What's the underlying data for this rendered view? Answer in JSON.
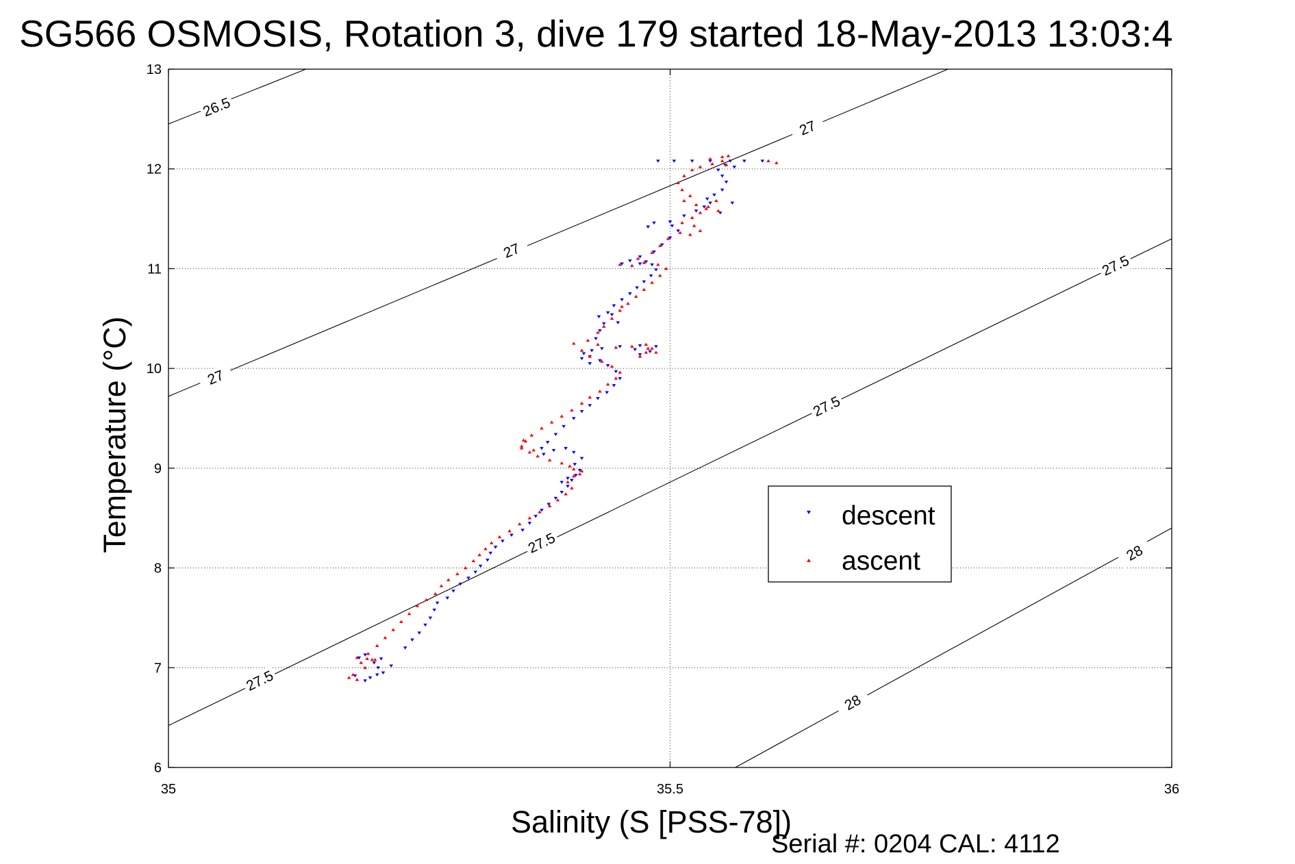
{
  "chart_data": {
    "type": "scatter",
    "title": "SG566 OSMOSIS, Rotation 3, dive 179 started 18-May-2013 13:03:4",
    "xlabel": "Salinity (S [PSS-78])",
    "ylabel": "Temperature (°C)",
    "xlim": [
      35,
      36
    ],
    "ylim": [
      6,
      13
    ],
    "x_ticks": [
      "35",
      "35.5",
      "36"
    ],
    "y_ticks": [
      "6",
      "7",
      "8",
      "9",
      "10",
      "11",
      "12",
      "13"
    ],
    "grid": "dotted",
    "legend_position": "center-right",
    "footer": "Serial #: 0204  CAL: 4112",
    "density_contours": [
      {
        "level": "26.5",
        "points": [
          [
            35.0,
            12.45
          ],
          [
            35.137,
            13.0
          ]
        ],
        "labels": [
          {
            "text": "26.5",
            "x": 35.048,
            "y": 12.62
          }
        ]
      },
      {
        "level": "27",
        "points": [
          [
            35.0,
            9.72
          ],
          [
            35.777,
            13.0
          ]
        ],
        "labels": [
          {
            "text": "27",
            "x": 35.047,
            "y": 9.91
          },
          {
            "text": "27",
            "x": 35.342,
            "y": 11.18
          },
          {
            "text": "27",
            "x": 35.637,
            "y": 12.41
          }
        ]
      },
      {
        "level": "27.5",
        "points": [
          [
            35.0,
            6.42
          ],
          [
            36.0,
            11.3
          ]
        ],
        "labels": [
          {
            "text": "27.5",
            "x": 35.091,
            "y": 6.87
          },
          {
            "text": "27.5",
            "x": 35.372,
            "y": 8.25
          },
          {
            "text": "27.5",
            "x": 35.656,
            "y": 9.62
          },
          {
            "text": "27.5",
            "x": 35.944,
            "y": 11.03
          }
        ]
      },
      {
        "level": "28",
        "points": [
          [
            35.565,
            6.0
          ],
          [
            36.0,
            8.4
          ]
        ],
        "labels": [
          {
            "text": "28",
            "x": 35.682,
            "y": 6.65
          },
          {
            "text": "28",
            "x": 35.963,
            "y": 8.15
          }
        ]
      }
    ],
    "series": [
      {
        "name": "descent",
        "color": "#0000ff",
        "marker": "triangle-down",
        "points": [
          [
            35.201,
            6.9
          ],
          [
            35.208,
            6.93
          ],
          [
            35.214,
            6.95
          ],
          [
            35.209,
            7.0
          ],
          [
            35.205,
            7.05
          ],
          [
            35.212,
            7.09
          ],
          [
            35.19,
            7.1
          ],
          [
            35.196,
            7.13
          ],
          [
            35.236,
            7.2
          ],
          [
            35.243,
            7.28
          ],
          [
            35.25,
            7.35
          ],
          [
            35.256,
            7.43
          ],
          [
            35.261,
            7.5
          ],
          [
            35.265,
            7.58
          ],
          [
            35.268,
            7.65
          ],
          [
            35.278,
            7.7
          ],
          [
            35.284,
            7.77
          ],
          [
            35.291,
            7.84
          ],
          [
            35.299,
            7.9
          ],
          [
            35.306,
            7.96
          ],
          [
            35.311,
            8.02
          ],
          [
            35.318,
            8.08
          ],
          [
            35.321,
            8.15
          ],
          [
            35.326,
            8.21
          ],
          [
            35.333,
            8.27
          ],
          [
            35.342,
            8.33
          ],
          [
            35.353,
            8.38
          ],
          [
            35.36,
            8.45
          ],
          [
            35.366,
            8.52
          ],
          [
            35.372,
            8.58
          ],
          [
            35.379,
            8.64
          ],
          [
            35.386,
            8.7
          ],
          [
            35.392,
            8.76
          ],
          [
            35.398,
            8.82
          ],
          [
            35.402,
            8.88
          ],
          [
            35.406,
            8.93
          ],
          [
            35.41,
            8.98
          ],
          [
            35.405,
            9.04
          ],
          [
            35.412,
            9.1
          ],
          [
            35.404,
            9.16
          ],
          [
            35.396,
            9.2
          ],
          [
            35.384,
            9.18
          ],
          [
            35.374,
            9.14
          ],
          [
            35.372,
            9.2
          ],
          [
            35.378,
            9.26
          ],
          [
            35.386,
            9.34
          ],
          [
            35.394,
            9.42
          ],
          [
            35.404,
            9.5
          ],
          [
            35.412,
            9.57
          ],
          [
            35.42,
            9.63
          ],
          [
            35.428,
            9.7
          ],
          [
            35.437,
            9.76
          ],
          [
            35.444,
            9.83
          ],
          [
            35.45,
            9.9
          ],
          [
            35.446,
            9.97
          ],
          [
            35.438,
            10.03
          ],
          [
            35.43,
            10.08
          ],
          [
            35.42,
            10.12
          ],
          [
            35.414,
            10.15
          ],
          [
            35.422,
            10.18
          ],
          [
            35.432,
            10.2
          ],
          [
            35.45,
            10.22
          ],
          [
            35.47,
            10.23
          ],
          [
            35.486,
            10.22
          ],
          [
            35.48,
            10.17
          ],
          [
            35.47,
            10.14
          ],
          [
            35.465,
            10.19
          ],
          [
            35.426,
            10.3
          ],
          [
            35.43,
            10.38
          ],
          [
            35.434,
            10.45
          ],
          [
            35.429,
            10.52
          ],
          [
            35.438,
            10.56
          ],
          [
            35.444,
            10.63
          ],
          [
            35.452,
            10.69
          ],
          [
            35.46,
            10.75
          ],
          [
            35.467,
            10.81
          ],
          [
            35.474,
            10.87
          ],
          [
            35.481,
            10.93
          ],
          [
            35.486,
            10.99
          ],
          [
            35.482,
            11.04
          ],
          [
            35.476,
            11.07
          ],
          [
            35.47,
            11.05
          ],
          [
            35.46,
            11.08
          ],
          [
            35.452,
            11.05
          ],
          [
            35.47,
            11.12
          ],
          [
            35.484,
            11.17
          ],
          [
            35.492,
            11.24
          ],
          [
            35.5,
            11.31
          ],
          [
            35.508,
            11.38
          ],
          [
            35.502,
            11.43
          ],
          [
            35.484,
            11.46
          ],
          [
            35.478,
            11.42
          ],
          [
            35.5,
            11.47
          ],
          [
            35.514,
            11.53
          ],
          [
            35.526,
            11.58
          ],
          [
            35.534,
            11.62
          ],
          [
            35.54,
            11.66
          ],
          [
            35.537,
            11.7
          ],
          [
            35.544,
            11.74
          ],
          [
            35.552,
            11.79
          ],
          [
            35.556,
            11.87
          ],
          [
            35.552,
            11.93
          ],
          [
            35.548,
            11.99
          ],
          [
            35.555,
            12.04
          ],
          [
            35.56,
            12.08
          ],
          [
            35.54,
            12.08
          ],
          [
            35.522,
            12.08
          ],
          [
            35.504,
            12.08
          ],
          [
            35.488,
            12.08
          ],
          [
            35.574,
            12.08
          ],
          [
            35.592,
            12.08
          ],
          [
            35.564,
            12.02
          ],
          [
            35.55,
            11.56
          ],
          [
            35.562,
            11.66
          ],
          [
            35.448,
            10.46
          ],
          [
            35.442,
            10.54
          ],
          [
            35.412,
            10.1
          ],
          [
            35.42,
            10.05
          ],
          [
            35.398,
            8.9
          ],
          [
            35.392,
            8.86
          ],
          [
            35.186,
            6.92
          ],
          [
            35.196,
            6.87
          ],
          [
            35.222,
            7.02
          ]
        ]
      },
      {
        "name": "ascent",
        "color": "#ff0000",
        "marker": "triangle-up",
        "points": [
          [
            35.18,
            6.9
          ],
          [
            35.188,
            6.88
          ],
          [
            35.184,
            6.93
          ],
          [
            35.196,
            7.0
          ],
          [
            35.192,
            7.05
          ],
          [
            35.188,
            7.1
          ],
          [
            35.203,
            7.08
          ],
          [
            35.199,
            7.14
          ],
          [
            35.208,
            7.22
          ],
          [
            35.216,
            7.3
          ],
          [
            35.224,
            7.38
          ],
          [
            35.232,
            7.46
          ],
          [
            35.24,
            7.54
          ],
          [
            35.248,
            7.62
          ],
          [
            35.257,
            7.68
          ],
          [
            35.266,
            7.74
          ],
          [
            35.272,
            7.82
          ],
          [
            35.279,
            7.88
          ],
          [
            35.288,
            7.94
          ],
          [
            35.296,
            8.0
          ],
          [
            35.304,
            8.07
          ],
          [
            35.31,
            8.13
          ],
          [
            35.316,
            8.19
          ],
          [
            35.322,
            8.25
          ],
          [
            35.33,
            8.31
          ],
          [
            35.34,
            8.37
          ],
          [
            35.35,
            8.44
          ],
          [
            35.36,
            8.5
          ],
          [
            35.37,
            8.56
          ],
          [
            35.38,
            8.62
          ],
          [
            35.388,
            8.68
          ],
          [
            35.396,
            8.74
          ],
          [
            35.402,
            8.8
          ],
          [
            35.398,
            8.86
          ],
          [
            35.404,
            8.92
          ],
          [
            35.412,
            8.97
          ],
          [
            35.4,
            9.02
          ],
          [
            35.392,
            9.05
          ],
          [
            35.38,
            9.08
          ],
          [
            35.368,
            9.12
          ],
          [
            35.36,
            9.16
          ],
          [
            35.352,
            9.2
          ],
          [
            35.356,
            9.27
          ],
          [
            35.362,
            9.33
          ],
          [
            35.372,
            9.4
          ],
          [
            35.382,
            9.46
          ],
          [
            35.392,
            9.52
          ],
          [
            35.402,
            9.58
          ],
          [
            35.412,
            9.65
          ],
          [
            35.42,
            9.71
          ],
          [
            35.43,
            9.77
          ],
          [
            35.438,
            9.84
          ],
          [
            35.446,
            9.9
          ],
          [
            35.45,
            9.96
          ],
          [
            35.442,
            10.02
          ],
          [
            35.432,
            10.07
          ],
          [
            35.42,
            10.12
          ],
          [
            35.412,
            10.18
          ],
          [
            35.404,
            10.25
          ],
          [
            35.418,
            10.28
          ],
          [
            35.428,
            10.24
          ],
          [
            35.446,
            10.21
          ],
          [
            35.462,
            10.22
          ],
          [
            35.476,
            10.24
          ],
          [
            35.482,
            10.2
          ],
          [
            35.476,
            10.16
          ],
          [
            35.47,
            10.12
          ],
          [
            35.428,
            10.36
          ],
          [
            35.434,
            10.42
          ],
          [
            35.442,
            10.5
          ],
          [
            35.45,
            10.58
          ],
          [
            35.458,
            10.65
          ],
          [
            35.466,
            10.72
          ],
          [
            35.474,
            10.79
          ],
          [
            35.482,
            10.86
          ],
          [
            35.49,
            10.93
          ],
          [
            35.496,
            11.0
          ],
          [
            35.488,
            11.04
          ],
          [
            35.474,
            11.06
          ],
          [
            35.462,
            11.03
          ],
          [
            35.45,
            11.04
          ],
          [
            35.468,
            11.1
          ],
          [
            35.482,
            11.16
          ],
          [
            35.49,
            11.23
          ],
          [
            35.498,
            11.3
          ],
          [
            35.51,
            11.36
          ],
          [
            35.52,
            11.34
          ],
          [
            35.53,
            11.38
          ],
          [
            35.524,
            11.43
          ],
          [
            35.512,
            11.46
          ],
          [
            35.522,
            11.51
          ],
          [
            35.53,
            11.56
          ],
          [
            35.536,
            11.6
          ],
          [
            35.526,
            11.64
          ],
          [
            35.514,
            11.68
          ],
          [
            35.52,
            11.73
          ],
          [
            35.512,
            11.79
          ],
          [
            35.508,
            11.86
          ],
          [
            35.514,
            11.93
          ],
          [
            35.522,
            11.99
          ],
          [
            35.53,
            12.02
          ],
          [
            35.542,
            12.05
          ],
          [
            35.552,
            12.08
          ],
          [
            35.558,
            12.13
          ],
          [
            35.552,
            12.12
          ],
          [
            35.54,
            12.1
          ],
          [
            35.556,
            12.04
          ],
          [
            35.548,
            11.58
          ],
          [
            35.538,
            11.62
          ],
          [
            35.546,
            11.68
          ],
          [
            35.598,
            12.08
          ],
          [
            35.606,
            12.06
          ],
          [
            35.354,
            9.28
          ],
          [
            35.352,
            9.22
          ],
          [
            35.364,
            9.18
          ],
          [
            35.41,
            8.94
          ],
          [
            35.404,
            8.99
          ],
          [
            35.478,
            10.2
          ],
          [
            35.486,
            10.16
          ],
          [
            35.452,
            10.62
          ],
          [
            35.198,
            7.09
          ],
          [
            35.206,
            7.08
          ]
        ]
      }
    ]
  }
}
